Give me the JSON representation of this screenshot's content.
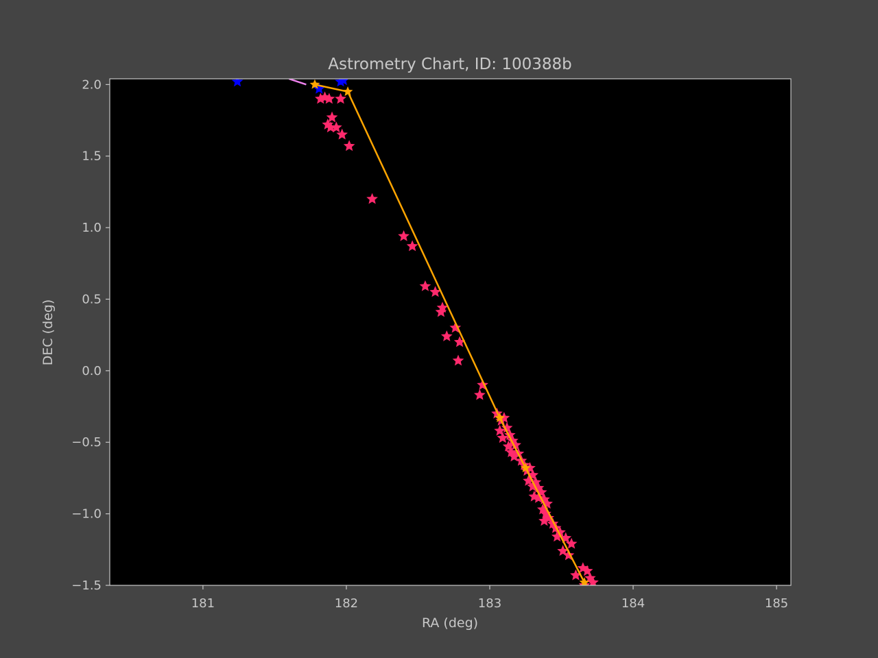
{
  "chart_data": {
    "type": "scatter",
    "title": "Astrometry Chart, ID: 100388b",
    "xlabel": "RA (deg)",
    "ylabel": "DEC (deg)",
    "xlim": [
      180.35,
      185.1
    ],
    "ylim": [
      -1.5,
      2.04
    ],
    "xticks": [
      181,
      182,
      183,
      184,
      185
    ],
    "xtick_labels": [
      "181",
      "182",
      "183",
      "184",
      "185"
    ],
    "yticks": [
      2.0,
      1.5,
      1.0,
      0.5,
      0.0,
      -0.5,
      -1.0,
      -1.5
    ],
    "ytick_labels": [
      "2.0",
      "1.5",
      "1.0",
      "0.5",
      "0.0",
      "−0.5",
      "−1.0",
      "−1.5"
    ],
    "grid": false,
    "colors": {
      "page_background": "#444444",
      "plot_background": "#000000",
      "text": "#c8c8c8",
      "observations": "#ff2a6d",
      "track": "#ffa500",
      "other_objects": "#0000ff",
      "prediction": "#ee82ee"
    },
    "series": [
      {
        "marker": "star",
        "color": "#ff2a6d",
        "points": [
          [
            181.82,
            1.9
          ],
          [
            181.85,
            1.91
          ],
          [
            181.88,
            1.9
          ],
          [
            181.9,
            1.77
          ],
          [
            181.87,
            1.72
          ],
          [
            181.89,
            1.7
          ],
          [
            181.93,
            1.7
          ],
          [
            181.97,
            1.65
          ],
          [
            182.02,
            1.57
          ],
          [
            182.18,
            1.2
          ],
          [
            182.4,
            0.94
          ],
          [
            182.46,
            0.87
          ],
          [
            182.55,
            0.59
          ],
          [
            182.62,
            0.55
          ],
          [
            182.66,
            0.41
          ],
          [
            182.67,
            0.44
          ],
          [
            182.7,
            0.24
          ],
          [
            182.76,
            0.3
          ],
          [
            182.79,
            0.2
          ],
          [
            182.78,
            0.07
          ],
          [
            182.93,
            -0.17
          ],
          [
            182.95,
            -0.1
          ],
          [
            183.05,
            -0.3
          ],
          [
            183.08,
            -0.35
          ],
          [
            183.1,
            -0.33
          ],
          [
            183.07,
            -0.42
          ],
          [
            183.12,
            -0.4
          ],
          [
            183.09,
            -0.47
          ],
          [
            183.14,
            -0.45
          ],
          [
            183.16,
            -0.49
          ],
          [
            183.13,
            -0.53
          ],
          [
            183.18,
            -0.52
          ],
          [
            183.15,
            -0.57
          ],
          [
            183.2,
            -0.58
          ],
          [
            183.17,
            -0.6
          ],
          [
            183.22,
            -0.63
          ],
          [
            183.24,
            -0.66
          ],
          [
            183.26,
            -0.7
          ],
          [
            183.28,
            -0.68
          ],
          [
            183.3,
            -0.73
          ],
          [
            183.27,
            -0.77
          ],
          [
            183.32,
            -0.78
          ],
          [
            183.3,
            -0.81
          ],
          [
            183.34,
            -0.82
          ],
          [
            183.36,
            -0.85
          ],
          [
            183.31,
            -0.88
          ],
          [
            183.34,
            -0.89
          ],
          [
            183.38,
            -0.9
          ],
          [
            183.4,
            -0.93
          ],
          [
            183.37,
            -0.97
          ],
          [
            183.39,
            -1.0
          ],
          [
            183.41,
            -1.03
          ],
          [
            183.38,
            -1.05
          ],
          [
            183.44,
            -1.07
          ],
          [
            183.46,
            -1.1
          ],
          [
            183.49,
            -1.13
          ],
          [
            183.47,
            -1.16
          ],
          [
            183.53,
            -1.17
          ],
          [
            183.57,
            -1.21
          ],
          [
            183.51,
            -1.26
          ],
          [
            183.55,
            -1.29
          ],
          [
            183.6,
            -1.43
          ],
          [
            183.65,
            -1.38
          ],
          [
            183.68,
            -1.4
          ],
          [
            183.7,
            -1.45
          ],
          [
            183.72,
            -1.48
          ],
          [
            183.66,
            -1.5
          ],
          [
            181.96,
            1.9
          ]
        ]
      },
      {
        "marker": "star",
        "color": "#0000ff",
        "points": [
          [
            181.24,
            2.02
          ],
          [
            181.81,
            1.97
          ],
          [
            181.96,
            2.02
          ],
          [
            181.98,
            2.03
          ]
        ]
      },
      {
        "marker": "line",
        "color": "#ee82ee",
        "points": [
          [
            181.6,
            2.04
          ],
          [
            181.72,
            2.0
          ]
        ]
      },
      {
        "marker": "line-star",
        "color": "#ffa500",
        "points": [
          [
            181.78,
            2.0
          ],
          [
            182.01,
            1.95
          ],
          [
            183.07,
            -0.33
          ],
          [
            183.25,
            -0.68
          ],
          [
            183.66,
            -1.48
          ]
        ]
      }
    ]
  }
}
